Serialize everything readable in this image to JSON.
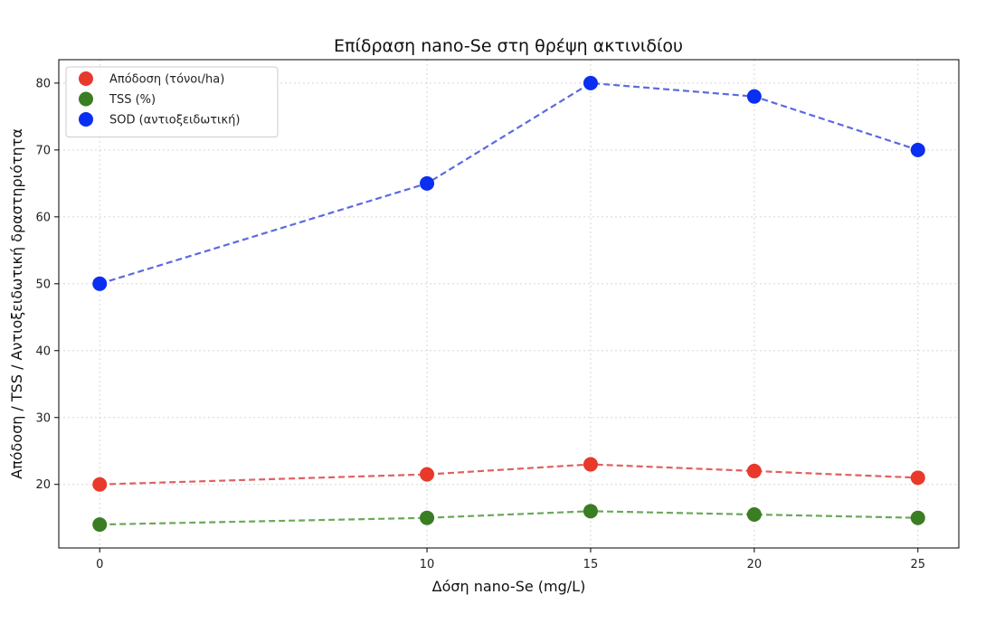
{
  "chart_data": {
    "type": "line",
    "title": "Επίδραση nano-Se στη θρέψη ακτινιδίου",
    "xlabel": "Δόση nano-Se (mg/L)",
    "ylabel": "Απόδοση / TSS / Αντιοξειδωτική δραστηριότητα",
    "x": [
      0,
      10,
      15,
      20,
      25
    ],
    "xlim": [
      -1.25,
      26.25
    ],
    "ylim": [
      10.5,
      83.5
    ],
    "xticks": [
      0,
      10,
      15,
      20,
      25
    ],
    "yticks": [
      20,
      30,
      40,
      50,
      60,
      70,
      80
    ],
    "grid": true,
    "legend_position": "top-left",
    "series": [
      {
        "name": "Απόδοση (τόνοι/ha)",
        "values": [
          20,
          21.5,
          23,
          22,
          21
        ],
        "marker_color": "#e8392b",
        "line_color": "#e06060"
      },
      {
        "name": "TSS (%)",
        "values": [
          14,
          15,
          16,
          15.5,
          15
        ],
        "marker_color": "#3a7d22",
        "line_color": "#6aa85a"
      },
      {
        "name": "SOD (αντιοξειδωτική)",
        "values": [
          50,
          65,
          80,
          78,
          70
        ],
        "marker_color": "#0a2ff0",
        "line_color": "#5a6ae0"
      }
    ]
  }
}
